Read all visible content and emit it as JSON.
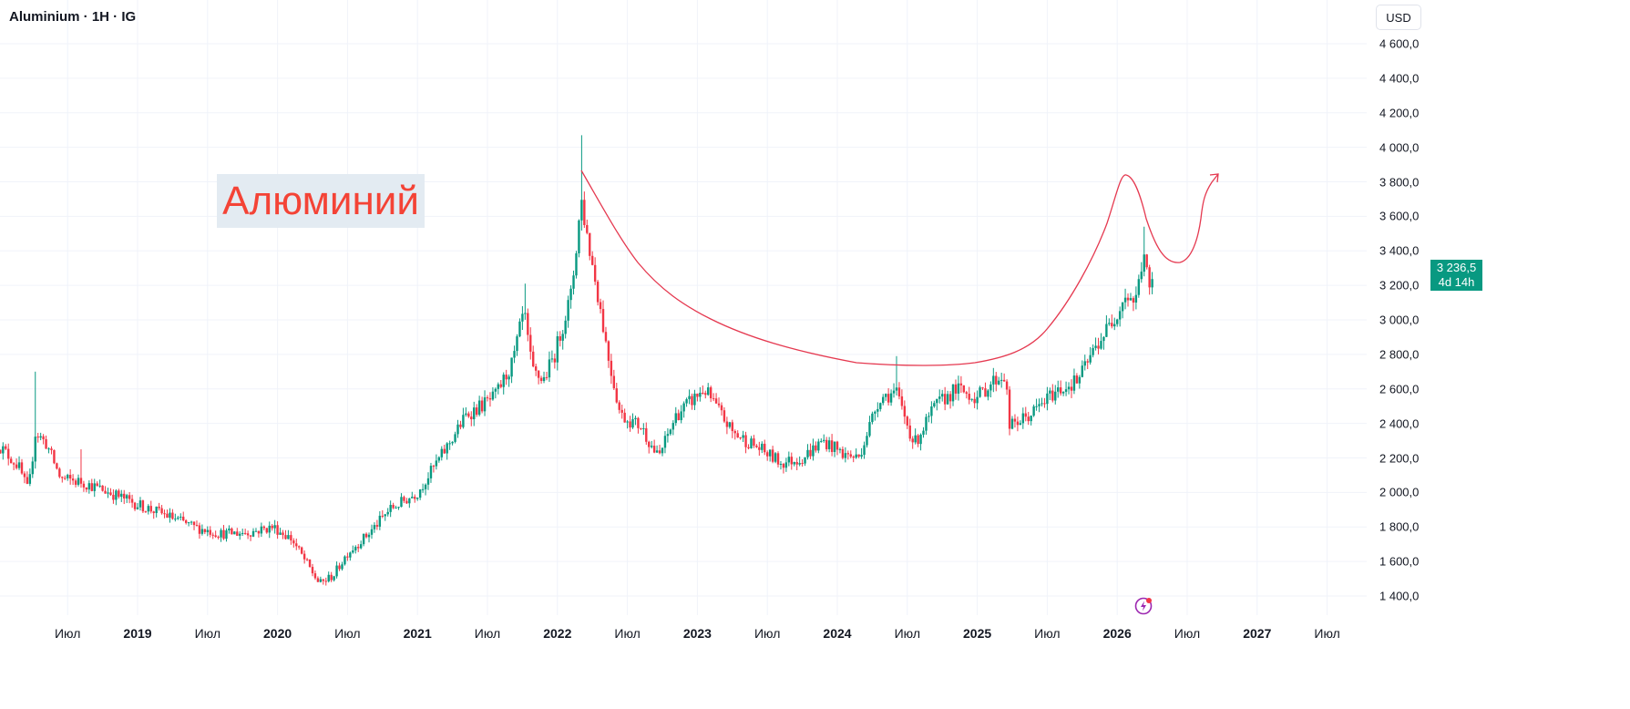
{
  "header": {
    "title": "Aluminium · 1H · IG",
    "currency": "USD"
  },
  "annotation": {
    "label": "Алюминий",
    "label_color": "#f44336",
    "line_color": "#e53950"
  },
  "last_price": {
    "value": "3 236,5",
    "countdown": "4d 14h",
    "color": "#089981"
  },
  "chart_data": {
    "type": "candlestick",
    "title": "Aluminium · 1H · IG",
    "ylabel": "USD",
    "ylim": [
      1250,
      4700
    ],
    "y_ticks": [
      "4 600,0",
      "4 400,0",
      "4 200,0",
      "4 000,0",
      "3 800,0",
      "3 600,0",
      "3 400,0",
      "3 200,0",
      "3 000,0",
      "2 800,0",
      "2 600,0",
      "2 400,0",
      "2 200,0",
      "2 000,0",
      "1 800,0",
      "1 600,0",
      "1 400,0"
    ],
    "y_tick_values": [
      4600,
      4400,
      4200,
      4000,
      3800,
      3600,
      3400,
      3200,
      3000,
      2800,
      2600,
      2400,
      2200,
      2000,
      1800,
      1600,
      1400
    ],
    "x_ticks": [
      {
        "label": "Июл",
        "t": 2018.5
      },
      {
        "label": "2019",
        "t": 2019.0,
        "year": true
      },
      {
        "label": "Июл",
        "t": 2019.5
      },
      {
        "label": "2020",
        "t": 2020.0,
        "year": true
      },
      {
        "label": "Июл",
        "t": 2020.5
      },
      {
        "label": "2021",
        "t": 2021.0,
        "year": true
      },
      {
        "label": "Июл",
        "t": 2021.5
      },
      {
        "label": "2022",
        "t": 2022.0,
        "year": true
      },
      {
        "label": "Июл",
        "t": 2022.5
      },
      {
        "label": "2023",
        "t": 2023.0,
        "year": true
      },
      {
        "label": "Июл",
        "t": 2023.5
      },
      {
        "label": "2024",
        "t": 2024.0,
        "year": true
      },
      {
        "label": "Июл",
        "t": 2024.5
      },
      {
        "label": "2025",
        "t": 2025.0,
        "year": true
      },
      {
        "label": "Июл",
        "t": 2025.5
      },
      {
        "label": "2026",
        "t": 2026.0,
        "year": true
      },
      {
        "label": "Июл",
        "t": 2026.5
      },
      {
        "label": "2027",
        "t": 2027.0,
        "year": true
      },
      {
        "label": "Июл",
        "t": 2027.5
      }
    ],
    "up_color": "#089981",
    "down_color": "#f23645",
    "price_path": [
      [
        2018.0,
        2280
      ],
      [
        2018.15,
        2150
      ],
      [
        2018.22,
        2000
      ],
      [
        2018.27,
        2350
      ],
      [
        2018.35,
        2280
      ],
      [
        2018.45,
        2080
      ],
      [
        2018.6,
        2060
      ],
      [
        2018.8,
        2000
      ],
      [
        2019.0,
        1930
      ],
      [
        2019.2,
        1870
      ],
      [
        2019.4,
        1800
      ],
      [
        2019.6,
        1760
      ],
      [
        2019.8,
        1770
      ],
      [
        2019.97,
        1800
      ],
      [
        2020.1,
        1730
      ],
      [
        2020.2,
        1600
      ],
      [
        2020.3,
        1470
      ],
      [
        2020.4,
        1520
      ],
      [
        2020.5,
        1650
      ],
      [
        2020.65,
        1760
      ],
      [
        2020.8,
        1900
      ],
      [
        2021.0,
        2000
      ],
      [
        2021.2,
        2250
      ],
      [
        2021.35,
        2450
      ],
      [
        2021.55,
        2550
      ],
      [
        2021.68,
        2750
      ],
      [
        2021.76,
        3050
      ],
      [
        2021.82,
        2700
      ],
      [
        2021.9,
        2650
      ],
      [
        2021.98,
        2800
      ],
      [
        2022.1,
        3150
      ],
      [
        2022.17,
        3700
      ],
      [
        2022.22,
        3450
      ],
      [
        2022.3,
        3100
      ],
      [
        2022.36,
        2800
      ],
      [
        2022.45,
        2450
      ],
      [
        2022.6,
        2380
      ],
      [
        2022.72,
        2200
      ],
      [
        2022.85,
        2450
      ],
      [
        2023.05,
        2600
      ],
      [
        2023.25,
        2350
      ],
      [
        2023.45,
        2250
      ],
      [
        2023.6,
        2170
      ],
      [
        2023.75,
        2200
      ],
      [
        2023.9,
        2300
      ],
      [
        2024.05,
        2220
      ],
      [
        2024.15,
        2200
      ],
      [
        2024.3,
        2550
      ],
      [
        2024.42,
        2580
      ],
      [
        2024.55,
        2280
      ],
      [
        2024.7,
        2500
      ],
      [
        2024.85,
        2600
      ],
      [
        2025.0,
        2550
      ],
      [
        2025.12,
        2650
      ],
      [
        2025.2,
        2680
      ],
      [
        2025.23,
        2380
      ],
      [
        2025.38,
        2450
      ],
      [
        2025.55,
        2580
      ],
      [
        2025.72,
        2650
      ],
      [
        2025.85,
        2850
      ],
      [
        2025.97,
        3000
      ],
      [
        2026.06,
        3150
      ],
      [
        2026.13,
        3100
      ],
      [
        2026.19,
        3400
      ],
      [
        2026.23,
        3150
      ],
      [
        2026.26,
        3236.5
      ]
    ],
    "spikes": [
      [
        2018.27,
        2700
      ],
      [
        2021.76,
        3210
      ],
      [
        2022.17,
        4070
      ],
      [
        2024.42,
        2790
      ],
      [
        2026.19,
        3540
      ],
      [
        2018.6,
        2250
      ]
    ],
    "last_close": 3236.5
  }
}
